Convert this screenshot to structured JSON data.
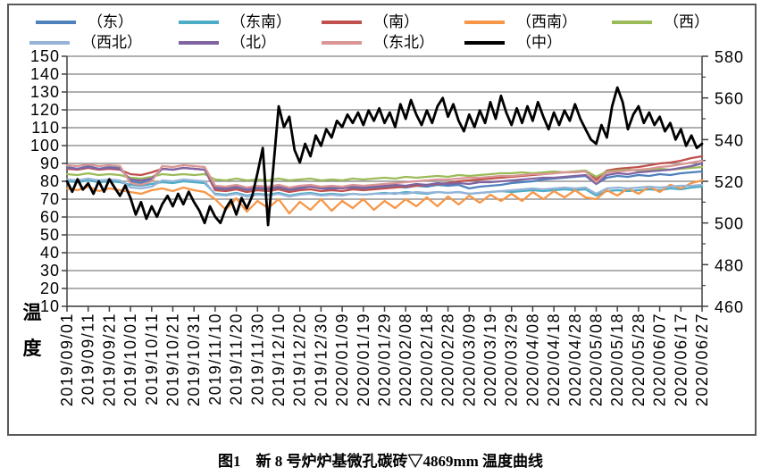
{
  "chart": {
    "caption": "图1　新 8 号炉炉基微孔碳砖▽4869mm 温度曲线",
    "y_left_title": "温度"
  },
  "legend": {
    "rows": [
      [
        {
          "label": "（东）",
          "color": "#4F81BD"
        },
        {
          "label": "（东南）",
          "color": "#4BACC6"
        },
        {
          "label": "（南）",
          "color": "#C0504D"
        },
        {
          "label": "（西南）",
          "color": "#F79646"
        },
        {
          "label": "（西）",
          "color": "#9BBB59"
        }
      ],
      [
        {
          "label": "（西北）",
          "color": "#95B3D7"
        },
        {
          "label": "（北）",
          "color": "#8064A2"
        },
        {
          "label": "（东北）",
          "color": "#D99694"
        },
        {
          "label": "（中）",
          "color": "#000000"
        }
      ]
    ]
  },
  "chart_data": {
    "type": "line",
    "title": "图1　新 8 号炉炉基微孔碳砖▽4869mm 温度曲线",
    "grid": true,
    "legend_position": "top",
    "y_left": {
      "label": "温度",
      "min": 10,
      "max": 150,
      "step": 10,
      "tick_labels": [
        "150",
        "140",
        "130",
        "120",
        "110",
        "100",
        "90",
        "80",
        "70",
        "60",
        "50",
        "40",
        "30",
        "20",
        "10"
      ]
    },
    "y_right": {
      "min": 460,
      "max": 580,
      "step": 20,
      "tick_labels": [
        "580",
        "560",
        "540",
        "520",
        "500",
        "480",
        "460"
      ]
    },
    "x_span_days": 300,
    "x_tick_labels": [
      "2019/09/01",
      "2019/09/11",
      "2019/09/21",
      "2019/10/01",
      "2019/10/11",
      "2019/10/21",
      "2019/10/31",
      "2019/11/10",
      "2019/11/20",
      "2019/11/30",
      "2019/12/10",
      "2019/12/20",
      "2019/12/30",
      "2020/01/09",
      "2020/01/19",
      "2020/01/29",
      "2020/02/08",
      "2020/02/18",
      "2020/02/28",
      "2020/03/09",
      "2020/03/19",
      "2020/03/29",
      "2020/04/08",
      "2020/04/18",
      "2020/04/28",
      "2020/05/08",
      "2020/05/18",
      "2020/05/28",
      "2020/06/07",
      "2020/06/17",
      "2020/06/27"
    ],
    "series": [
      {
        "name": "（东）",
        "color": "#4F81BD",
        "axis": "left",
        "step_days": 5,
        "values": [
          88,
          87,
          88.5,
          87,
          88,
          87.5,
          80,
          79,
          81,
          87,
          86.5,
          87.5,
          87,
          86.5,
          76,
          75.5,
          76.5,
          75,
          76,
          75.5,
          76.5,
          75,
          76,
          77,
          76,
          75.5,
          76.5,
          76,
          75.5,
          76,
          76.5,
          77,
          76.5,
          77.5,
          77,
          78,
          77.5,
          78,
          76,
          77,
          77.5,
          78,
          79,
          79.5,
          80,
          81,
          81.5,
          82,
          82.5,
          83,
          78.5,
          82,
          83,
          82.5,
          83.5,
          83,
          84,
          83.5,
          84.5,
          85,
          85.5
        ]
      },
      {
        "name": "（东南）",
        "color": "#4BACC6",
        "axis": "left",
        "step_days": 5,
        "values": [
          80,
          79.5,
          80.5,
          79.5,
          80,
          79.5,
          78,
          77.5,
          78.5,
          79.5,
          79,
          80,
          79.5,
          79,
          73,
          72.5,
          73.5,
          72,
          73,
          72.5,
          73.5,
          72,
          73,
          73.5,
          72.5,
          73,
          72.5,
          73,
          72.5,
          73,
          73.5,
          73,
          74,
          73.5,
          73,
          74,
          73.5,
          74,
          73,
          73.5,
          74,
          74.5,
          74,
          74.5,
          75,
          74.5,
          75,
          75.5,
          75,
          75.5,
          72,
          74.5,
          75,
          74.5,
          75,
          75.5,
          75,
          76,
          75.5,
          76.5,
          77
        ]
      },
      {
        "name": "（南）",
        "color": "#C0504D",
        "axis": "left",
        "step_days": 5,
        "values": [
          87,
          86.5,
          87.5,
          86.5,
          87,
          86.5,
          84,
          83.5,
          85,
          87,
          86.5,
          87.5,
          87,
          86.5,
          75,
          74.5,
          75.5,
          74,
          75,
          74.5,
          75.5,
          74,
          75,
          75.5,
          74.5,
          75,
          74.5,
          75.5,
          75,
          75.5,
          76,
          76.5,
          77,
          77.5,
          78,
          78.5,
          79,
          80,
          80.5,
          81,
          81.5,
          82,
          82.5,
          83,
          83.5,
          84,
          84.5,
          85,
          85.5,
          86,
          81,
          86,
          87,
          87.5,
          88,
          89,
          90,
          90.5,
          91.5,
          93,
          94
        ]
      },
      {
        "name": "（西南）",
        "color": "#F79646",
        "axis": "left",
        "step_days": 5,
        "values": [
          76,
          75,
          77,
          74.5,
          76,
          75,
          74,
          73,
          75,
          76,
          74.5,
          76.5,
          75,
          74,
          70,
          64,
          70.5,
          63,
          69,
          65,
          70,
          62,
          68.5,
          64,
          70,
          63.5,
          69,
          65,
          70,
          64,
          69,
          65,
          70,
          66,
          71,
          66,
          71.5,
          67,
          72,
          68,
          72.5,
          69,
          73,
          69,
          74,
          70,
          74.5,
          71,
          75,
          71,
          70,
          75,
          72,
          76,
          73,
          77,
          74,
          78,
          76,
          79,
          80.5
        ]
      },
      {
        "name": "（西）",
        "color": "#9BBB59",
        "axis": "left",
        "step_days": 5,
        "values": [
          84,
          83.5,
          84.5,
          83.5,
          84,
          83.5,
          82,
          81.5,
          82.5,
          84,
          83.5,
          84,
          83.5,
          84,
          81,
          80.5,
          81.5,
          80.5,
          81,
          80.5,
          81.5,
          80.5,
          81,
          81.5,
          80.5,
          81,
          80.5,
          81.5,
          81,
          81.5,
          82,
          81.5,
          82.5,
          82,
          82.5,
          83,
          82.5,
          83.5,
          83,
          83.5,
          84,
          84.5,
          84.5,
          85,
          84.5,
          85,
          85.5,
          85,
          85.5,
          86,
          82.5,
          85.5,
          86,
          86.5,
          86,
          86.5,
          87,
          86.5,
          87,
          87.5,
          88
        ]
      },
      {
        "name": "（西北）",
        "color": "#95B3D7",
        "axis": "left",
        "step_days": 5,
        "values": [
          81,
          80.5,
          81.5,
          80.5,
          81,
          80.5,
          76.5,
          76,
          77,
          80.5,
          80,
          81,
          80.5,
          80,
          72.5,
          72,
          73,
          71.5,
          72.5,
          72,
          73,
          71.5,
          72.5,
          73,
          72,
          72.5,
          72,
          73,
          72.5,
          73,
          73,
          73.5,
          73,
          74,
          73.5,
          74,
          73.5,
          74,
          73,
          73.5,
          74,
          74.5,
          75,
          75.5,
          76,
          75.5,
          76,
          76.5,
          76,
          76.5,
          73,
          76,
          76.5,
          76,
          76.5,
          77,
          76.5,
          77,
          77.5,
          77.5,
          78
        ]
      },
      {
        "name": "（北）",
        "color": "#8064A2",
        "axis": "left",
        "step_days": 5,
        "values": [
          87.5,
          87,
          88,
          87,
          87.5,
          87,
          81,
          80.5,
          81.5,
          87,
          86.5,
          87.5,
          87,
          86.5,
          76.5,
          76,
          77,
          75.5,
          76.5,
          76,
          77,
          75.5,
          76.5,
          77,
          76,
          76.5,
          76,
          77,
          76.5,
          77,
          77.5,
          78,
          77.5,
          78.5,
          78,
          79,
          78.5,
          79,
          78.5,
          79.5,
          79.5,
          80,
          80.5,
          81,
          81.5,
          82,
          82,
          82.5,
          83,
          83.5,
          78.5,
          83.5,
          84.5,
          84,
          85,
          85.5,
          86,
          86.5,
          87.5,
          88.5,
          90
        ]
      },
      {
        "name": "（东北）",
        "color": "#D99694",
        "axis": "left",
        "step_days": 5,
        "values": [
          89,
          88.5,
          89.5,
          88.5,
          89,
          88.5,
          79,
          78,
          80,
          88.5,
          88,
          89,
          88.5,
          88,
          77.5,
          77,
          78,
          76.5,
          77.5,
          77,
          78,
          76.5,
          77.5,
          78,
          77,
          77.5,
          77,
          78,
          77.5,
          78,
          78.5,
          79,
          79.5,
          80,
          80.5,
          81,
          81,
          81.5,
          82,
          82,
          82.5,
          83,
          83,
          83.5,
          84,
          84,
          84.5,
          85,
          85,
          85.5,
          79.5,
          85,
          85.5,
          86,
          86.5,
          87,
          88,
          88.5,
          89.5,
          90.5,
          91.5
        ]
      },
      {
        "name": "（中）",
        "color": "#000000",
        "axis": "right",
        "step_days": 2.5,
        "values": [
          520,
          515,
          521,
          516,
          519,
          514,
          520,
          515,
          521,
          517,
          513,
          518,
          512,
          504,
          510,
          502,
          508,
          503,
          509,
          513,
          508,
          514,
          509,
          515,
          510,
          506,
          500,
          508,
          503,
          500,
          507,
          511,
          504,
          512,
          507,
          513,
          524,
          536,
          499,
          527,
          556,
          546,
          551,
          535,
          529,
          538,
          532,
          542,
          537,
          545,
          541,
          549,
          546,
          552,
          548,
          553,
          547,
          554,
          549,
          555,
          548,
          553,
          546,
          557,
          550,
          559,
          552,
          547,
          554,
          548,
          556,
          560,
          551,
          557,
          549,
          544,
          552,
          546,
          554,
          548,
          558,
          550,
          561,
          553,
          547,
          555,
          548,
          556,
          549,
          558,
          551,
          545,
          553,
          547,
          554,
          549,
          557,
          550,
          545,
          540,
          538,
          547,
          541,
          556,
          565,
          558,
          545,
          552,
          556,
          548,
          553,
          547,
          551,
          544,
          548,
          540,
          545,
          537,
          542,
          536,
          538
        ]
      }
    ]
  }
}
